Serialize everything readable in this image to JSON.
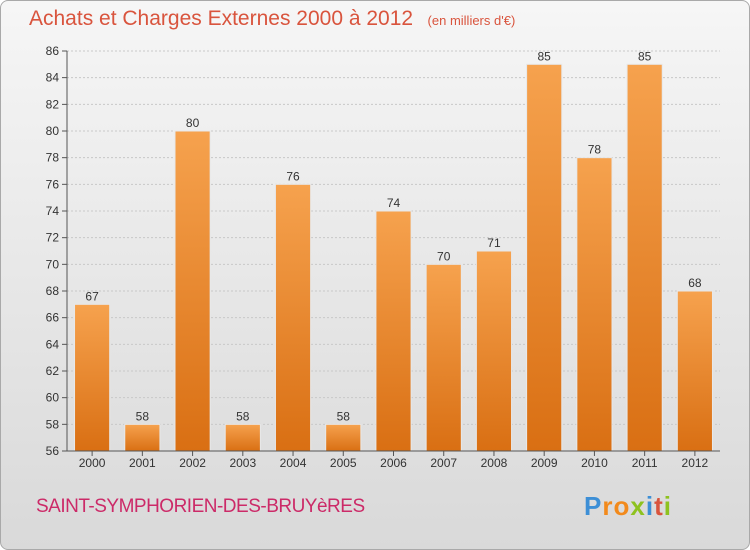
{
  "title": "Achats et Charges Externes 2000 à 2012",
  "subtitle": "(en milliers d'€)",
  "town": "SAINT-SYMPHORIEN-DES-BRUYèRES",
  "logo_text": "Proxiti",
  "colors": {
    "title": "#d9543d",
    "bar_top": "#f6a24e",
    "bar_bottom": "#d96f13",
    "town": "#cc2a68"
  },
  "chart_data": {
    "type": "bar",
    "title": "Achats et Charges Externes 2000 à 2012",
    "subtitle": "(en milliers d'€)",
    "categories": [
      "2000",
      "2001",
      "2002",
      "2003",
      "2004",
      "2005",
      "2006",
      "2007",
      "2008",
      "2009",
      "2010",
      "2011",
      "2012"
    ],
    "values": [
      67,
      58,
      80,
      58,
      76,
      58,
      74,
      70,
      71,
      85,
      78,
      85,
      68
    ],
    "ylim": [
      56,
      86
    ],
    "yticks": [
      56,
      58,
      60,
      62,
      64,
      66,
      68,
      70,
      72,
      74,
      76,
      78,
      80,
      82,
      84,
      86
    ],
    "grid": true,
    "data_labels": true
  }
}
